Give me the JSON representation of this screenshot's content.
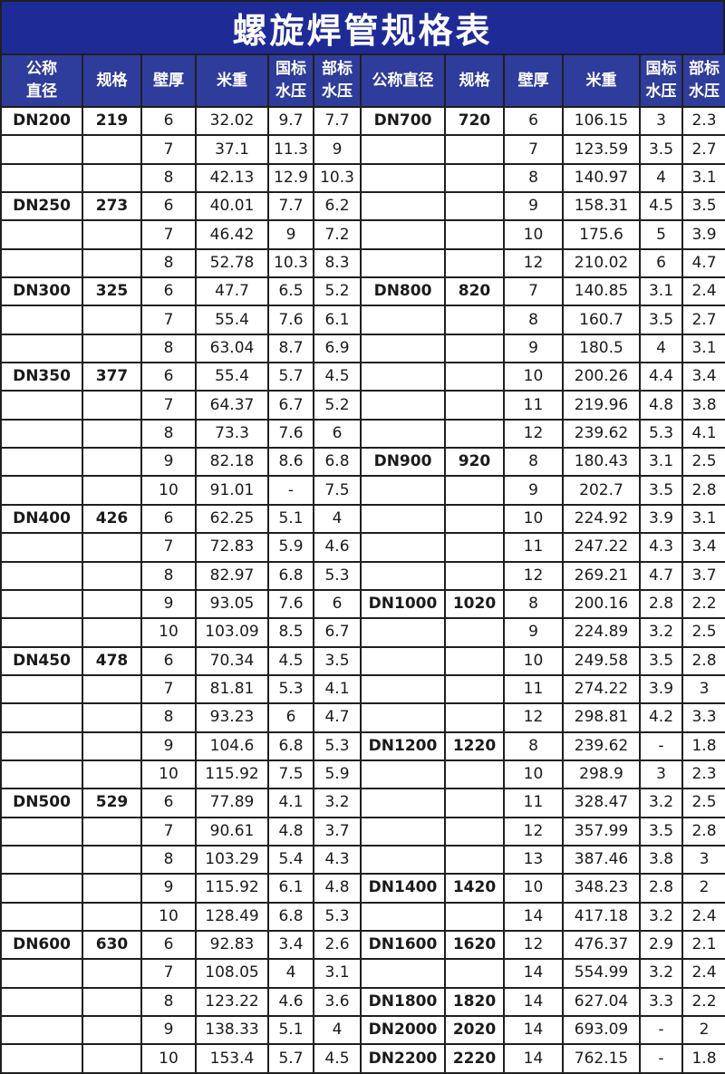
{
  "title": "螺旋焊管规格表",
  "colors": {
    "title_bg": "#1e2b97",
    "header_bg": "#2e3c9c",
    "border": "#1f1f1f",
    "header_text": "#ffffff",
    "text": "#1a1a1a",
    "page_bg": "#ffffff"
  },
  "table": {
    "headers": [
      "公称\n直径",
      "规格",
      "壁厚",
      "米重",
      "国标\n水压",
      "部标\n水压",
      "公称直径",
      "规格",
      "壁厚",
      "米重",
      "国标\n水压",
      "部标\n水压"
    ],
    "rows": [
      [
        "DN200",
        "219",
        "6",
        "32.02",
        "9.7",
        "7.7",
        "DN700",
        "720",
        "6",
        "106.15",
        "3",
        "2.3"
      ],
      [
        "",
        "",
        "7",
        "37.1",
        "11.3",
        "9",
        "",
        "",
        "7",
        "123.59",
        "3.5",
        "2.7"
      ],
      [
        "",
        "",
        "8",
        "42.13",
        "12.9",
        "10.3",
        "",
        "",
        "8",
        "140.97",
        "4",
        "3.1"
      ],
      [
        "DN250",
        "273",
        "6",
        "40.01",
        "7.7",
        "6.2",
        "",
        "",
        "9",
        "158.31",
        "4.5",
        "3.5"
      ],
      [
        "",
        "",
        "7",
        "46.42",
        "9",
        "7.2",
        "",
        "",
        "10",
        "175.6",
        "5",
        "3.9"
      ],
      [
        "",
        "",
        "8",
        "52.78",
        "10.3",
        "8.3",
        "",
        "",
        "12",
        "210.02",
        "6",
        "4.7"
      ],
      [
        "DN300",
        "325",
        "6",
        "47.7",
        "6.5",
        "5.2",
        "DN800",
        "820",
        "7",
        "140.85",
        "3.1",
        "2.4"
      ],
      [
        "",
        "",
        "7",
        "55.4",
        "7.6",
        "6.1",
        "",
        "",
        "8",
        "160.7",
        "3.5",
        "2.7"
      ],
      [
        "",
        "",
        "8",
        "63.04",
        "8.7",
        "6.9",
        "",
        "",
        "9",
        "180.5",
        "4",
        "3.1"
      ],
      [
        "DN350",
        "377",
        "6",
        "55.4",
        "5.7",
        "4.5",
        "",
        "",
        "10",
        "200.26",
        "4.4",
        "3.4"
      ],
      [
        "",
        "",
        "7",
        "64.37",
        "6.7",
        "5.2",
        "",
        "",
        "11",
        "219.96",
        "4.8",
        "3.8"
      ],
      [
        "",
        "",
        "8",
        "73.3",
        "7.6",
        "6",
        "",
        "",
        "12",
        "239.62",
        "5.3",
        "4.1"
      ],
      [
        "",
        "",
        "9",
        "82.18",
        "8.6",
        "6.8",
        "DN900",
        "920",
        "8",
        "180.43",
        "3.1",
        "2.5"
      ],
      [
        "",
        "",
        "10",
        "91.01",
        "-",
        "7.5",
        "",
        "",
        "9",
        "202.7",
        "3.5",
        "2.8"
      ],
      [
        "DN400",
        "426",
        "6",
        "62.25",
        "5.1",
        "4",
        "",
        "",
        "10",
        "224.92",
        "3.9",
        "3.1"
      ],
      [
        "",
        "",
        "7",
        "72.83",
        "5.9",
        "4.6",
        "",
        "",
        "11",
        "247.22",
        "4.3",
        "3.4"
      ],
      [
        "",
        "",
        "8",
        "82.97",
        "6.8",
        "5.3",
        "",
        "",
        "12",
        "269.21",
        "4.7",
        "3.7"
      ],
      [
        "",
        "",
        "9",
        "93.05",
        "7.6",
        "6",
        "DN1000",
        "1020",
        "8",
        "200.16",
        "2.8",
        "2.2"
      ],
      [
        "",
        "",
        "10",
        "103.09",
        "8.5",
        "6.7",
        "",
        "",
        "9",
        "224.89",
        "3.2",
        "2.5"
      ],
      [
        "DN450",
        "478",
        "6",
        "70.34",
        "4.5",
        "3.5",
        "",
        "",
        "10",
        "249.58",
        "3.5",
        "2.8"
      ],
      [
        "",
        "",
        "7",
        "81.81",
        "5.3",
        "4.1",
        "",
        "",
        "11",
        "274.22",
        "3.9",
        "3"
      ],
      [
        "",
        "",
        "8",
        "93.23",
        "6",
        "4.7",
        "",
        "",
        "12",
        "298.81",
        "4.2",
        "3.3"
      ],
      [
        "",
        "",
        "9",
        "104.6",
        "6.8",
        "5.3",
        "DN1200",
        "1220",
        "8",
        "239.62",
        "-",
        "1.8"
      ],
      [
        "",
        "",
        "10",
        "115.92",
        "7.5",
        "5.9",
        "",
        "",
        "10",
        "298.9",
        "3",
        "2.3"
      ],
      [
        "DN500",
        "529",
        "6",
        "77.89",
        "4.1",
        "3.2",
        "",
        "",
        "11",
        "328.47",
        "3.2",
        "2.5"
      ],
      [
        "",
        "",
        "7",
        "90.61",
        "4.8",
        "3.7",
        "",
        "",
        "12",
        "357.99",
        "3.5",
        "2.8"
      ],
      [
        "",
        "",
        "8",
        "103.29",
        "5.4",
        "4.3",
        "",
        "",
        "13",
        "387.46",
        "3.8",
        "3"
      ],
      [
        "",
        "",
        "9",
        "115.92",
        "6.1",
        "4.8",
        "DN1400",
        "1420",
        "10",
        "348.23",
        "2.8",
        "2"
      ],
      [
        "",
        "",
        "10",
        "128.49",
        "6.8",
        "5.3",
        "",
        "",
        "14",
        "417.18",
        "3.2",
        "2.4"
      ],
      [
        "DN600",
        "630",
        "6",
        "92.83",
        "3.4",
        "2.6",
        "DN1600",
        "1620",
        "12",
        "476.37",
        "2.9",
        "2.1"
      ],
      [
        "",
        "",
        "7",
        "108.05",
        "4",
        "3.1",
        "",
        "",
        "14",
        "554.99",
        "3.2",
        "2.4"
      ],
      [
        "",
        "",
        "8",
        "123.22",
        "4.6",
        "3.6",
        "DN1800",
        "1820",
        "14",
        "627.04",
        "3.3",
        "2.2"
      ],
      [
        "",
        "",
        "9",
        "138.33",
        "5.1",
        "4",
        "DN2000",
        "2020",
        "14",
        "693.09",
        "-",
        "2"
      ],
      [
        "",
        "",
        "10",
        "153.4",
        "5.7",
        "4.5",
        "DN2200",
        "2220",
        "14",
        "762.15",
        "-",
        "1.8"
      ]
    ]
  }
}
